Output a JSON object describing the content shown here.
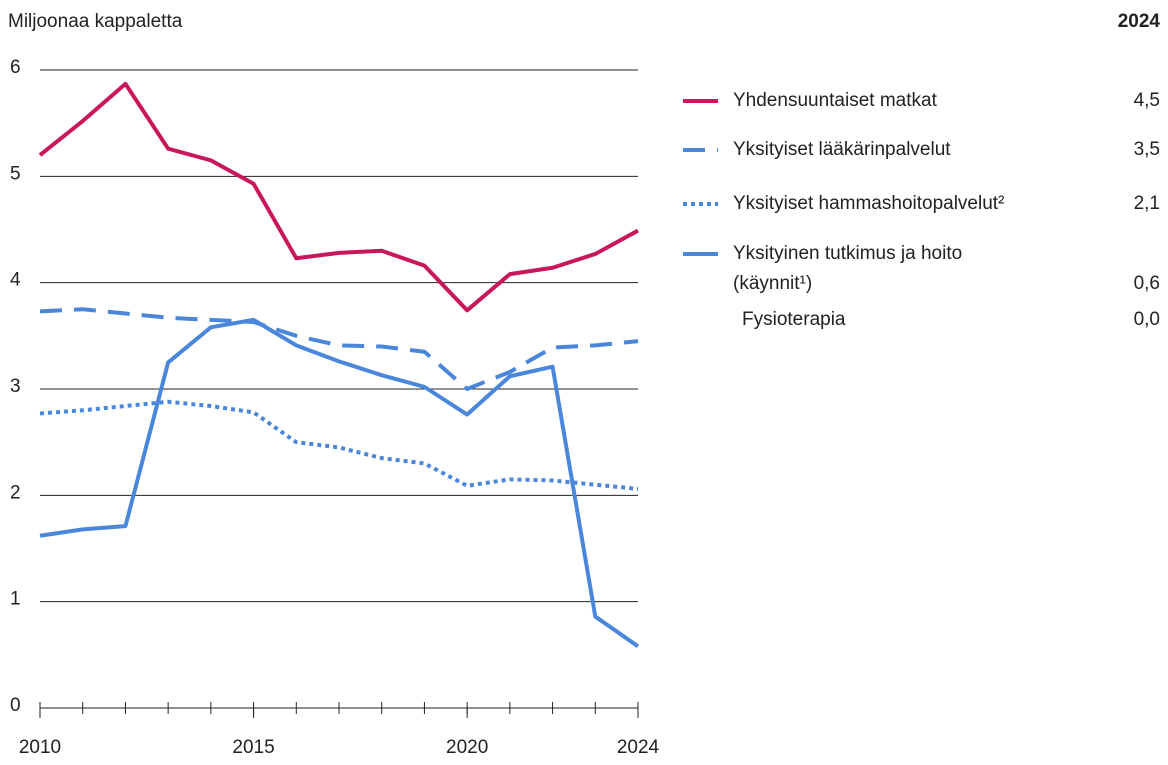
{
  "chart_data": {
    "type": "line",
    "y_label": "Miljoonaa kappaletta",
    "legend_value_header": "2024",
    "x": [
      2010,
      2011,
      2012,
      2013,
      2014,
      2015,
      2016,
      2017,
      2018,
      2019,
      2020,
      2021,
      2022,
      2023,
      2024
    ],
    "xlim": [
      2010,
      2024
    ],
    "xticks": [
      2010,
      2015,
      2020,
      2024
    ],
    "ylim": [
      0,
      6
    ],
    "yticks": [
      0,
      1,
      2,
      3,
      4,
      5,
      6
    ],
    "grid": true,
    "series": [
      {
        "name": "Yhdensuuntaiset matkat",
        "color": "#c8175a",
        "style": "solid",
        "legend_value": "4,5",
        "values": [
          5.2,
          5.52,
          5.87,
          5.26,
          5.15,
          4.93,
          4.23,
          4.28,
          4.3,
          4.16,
          3.74,
          4.08,
          4.14,
          4.27,
          4.49
        ]
      },
      {
        "name": "Yksityiset lääkärinpalvelut",
        "color": "#4a86d9",
        "style": "dashed",
        "legend_value": "3,5",
        "values": [
          3.73,
          3.75,
          3.71,
          3.67,
          3.65,
          3.63,
          3.5,
          3.41,
          3.4,
          3.35,
          3.0,
          3.16,
          3.39,
          3.41,
          3.45
        ]
      },
      {
        "name": "Yksityiset hammashoitopalvelut²",
        "color": "#4a86d9",
        "style": "dotted",
        "legend_value": "2,1",
        "values": [
          2.77,
          2.8,
          2.84,
          2.88,
          2.84,
          2.78,
          2.5,
          2.45,
          2.35,
          2.3,
          2.09,
          2.15,
          2.14,
          2.1,
          2.06
        ]
      },
      {
        "name": "Yksityinen tutkimus ja hoito\n(käynnit¹)",
        "color": "#4a86d9",
        "style": "solid",
        "legend_value": "0,6",
        "values": [
          1.62,
          1.68,
          1.71,
          3.25,
          3.58,
          3.65,
          3.41,
          3.26,
          3.13,
          3.02,
          2.76,
          3.12,
          3.21,
          0.86,
          0.58
        ]
      }
    ],
    "legend_subitem": {
      "name": "Fysioterapia",
      "legend_value": "0,0"
    }
  }
}
